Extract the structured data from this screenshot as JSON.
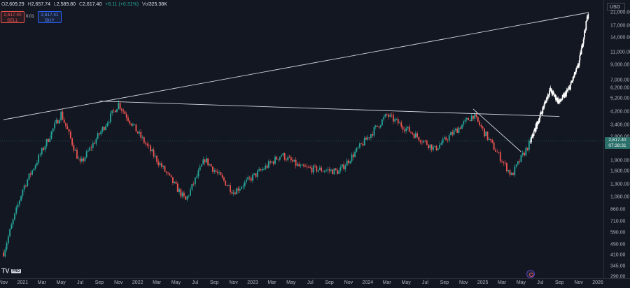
{
  "header": {
    "ohlc": [
      {
        "key": "O",
        "value": "2,609.29"
      },
      {
        "key": "H",
        "value": "2,657.74"
      },
      {
        "key": "L",
        "value": "2,589.80"
      },
      {
        "key": "C",
        "value": "2,617.40"
      }
    ],
    "change": "+8.11 (+0.31%)",
    "volume_key": "Vol",
    "volume": "325.38K"
  },
  "trade": {
    "sell_price": "2,617.40",
    "sell_label": "SELL",
    "spread": "0.01",
    "buy_price": "2,617.41",
    "buy_label": "BUY"
  },
  "price_axis": {
    "currency": "USD",
    "labels": [
      "21,000.00",
      "17,000.00",
      "14,000.00",
      "11,000.00",
      "9,000.00",
      "7,000.00",
      "6,200.00",
      "5,200.00",
      "4,200.00",
      "3,400.00",
      "2,800.00",
      "1,900.00",
      "1,600.00",
      "1,300.00",
      "1,060.00",
      "860.00",
      "710.00",
      "590.00",
      "490.00",
      "410.00",
      "345.00",
      "290.00"
    ],
    "last_price": "2,617.40",
    "countdown": "07:38:31"
  },
  "time_axis": {
    "labels": [
      "Nov",
      "2021",
      "Mar",
      "May",
      "Jul",
      "Sep",
      "Nov",
      "2022",
      "Mar",
      "May",
      "Jul",
      "Sep",
      "Nov",
      "2023",
      "Mar",
      "May",
      "Jul",
      "Sep",
      "Nov",
      "2024",
      "Mar",
      "May",
      "Jul",
      "Sep",
      "Nov",
      "2025",
      "Mar",
      "May",
      "Jul",
      "Sep",
      "Nov",
      "2026"
    ]
  },
  "branding": {
    "logo": "TV",
    "badge": "PRO"
  },
  "colors": {
    "background": "#131722",
    "up": "#26a69a",
    "down": "#ef5350",
    "projection": "#ffffff",
    "trendline": "#d1d4dc"
  },
  "chart_data": {
    "type": "candlestick",
    "scale": "log",
    "x_range": [
      "2020-11",
      "2026-01"
    ],
    "y_range": [
      290,
      21000
    ],
    "key_points": [
      {
        "x": "2020-11",
        "y": 430
      },
      {
        "x": "2021-01",
        "y": 1200
      },
      {
        "x": "2021-05",
        "y": 4100
      },
      {
        "x": "2021-07",
        "y": 1800
      },
      {
        "x": "2021-11",
        "y": 4800
      },
      {
        "x": "2022-01",
        "y": 3000
      },
      {
        "x": "2022-06",
        "y": 1000
      },
      {
        "x": "2022-08",
        "y": 1950
      },
      {
        "x": "2022-11",
        "y": 1150
      },
      {
        "x": "2023-04",
        "y": 2100
      },
      {
        "x": "2023-06",
        "y": 1700
      },
      {
        "x": "2023-10",
        "y": 1600
      },
      {
        "x": "2024-03",
        "y": 4000
      },
      {
        "x": "2024-08",
        "y": 2300
      },
      {
        "x": "2024-12",
        "y": 4000
      },
      {
        "x": "2025-04",
        "y": 1500
      },
      {
        "x": "2025-06",
        "y": 2617.4
      }
    ],
    "projection": [
      {
        "x": "2025-06",
        "y": 2617.4
      },
      {
        "x": "2025-08",
        "y": 6000
      },
      {
        "x": "2025-09",
        "y": 4900
      },
      {
        "x": "2025-10",
        "y": 6100
      },
      {
        "x": "2025-11",
        "y": 9000
      },
      {
        "x": "2025-12",
        "y": 21000
      }
    ],
    "lines": [
      {
        "name": "",
        "from": {
          "x": "2020-11",
          "y": 3700
        },
        "to": {
          "x": "2025-12",
          "y": 21000
        }
      },
      {
        "name": "",
        "from": {
          "x": "2021-09",
          "y": 5000
        },
        "to": {
          "x": "2025-09",
          "y": 3900
        }
      },
      {
        "name": "",
        "from": {
          "x": "2024-12",
          "y": 4400
        },
        "to": {
          "x": "2025-05",
          "y": 2200
        }
      }
    ],
    "last_price": 2617.4
  }
}
